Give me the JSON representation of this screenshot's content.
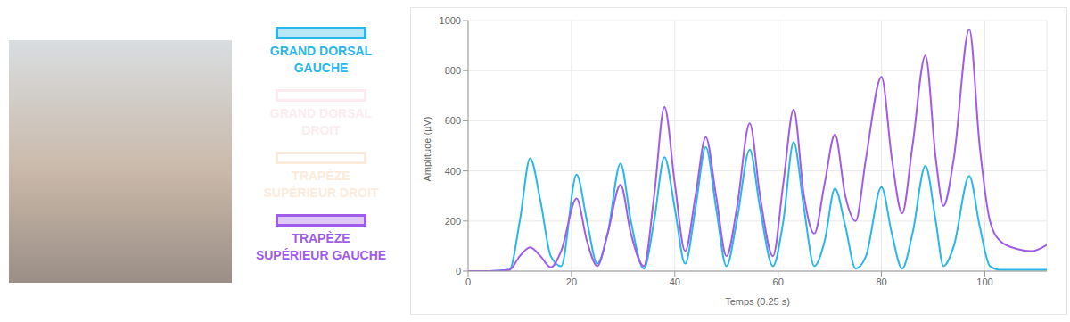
{
  "chart_data": {
    "type": "line",
    "x_label": "Temps (0.25 s)",
    "y_label": "Amplitude (µV)",
    "legend": "left",
    "grid": true,
    "xlim": [
      0,
      112
    ],
    "xticks": [
      0,
      20,
      40,
      60,
      80,
      100
    ],
    "ylim": [
      0,
      1000
    ],
    "yticks": [
      0,
      200,
      400,
      600,
      800,
      1000
    ],
    "x": [
      0,
      4,
      8,
      10,
      12,
      14,
      16,
      18,
      21,
      23,
      25,
      27,
      29.5,
      31.5,
      34,
      36,
      38,
      40,
      42,
      44,
      46,
      48,
      50,
      52,
      54.5,
      56.5,
      59,
      61,
      63,
      65,
      67,
      69,
      71,
      73,
      75,
      77,
      80,
      82,
      84,
      86,
      88.5,
      90.5,
      92,
      94,
      97,
      99,
      101,
      103,
      106,
      109,
      112
    ],
    "series": [
      {
        "name": "GRAND DORSAL GAUCHE",
        "color": "#29b6e8",
        "values": [
          0,
          0,
          5,
          200,
          450,
          280,
          60,
          20,
          385,
          200,
          30,
          150,
          430,
          200,
          10,
          200,
          455,
          250,
          30,
          250,
          495,
          250,
          20,
          200,
          485,
          250,
          20,
          200,
          515,
          250,
          20,
          120,
          330,
          180,
          10,
          60,
          335,
          150,
          10,
          150,
          420,
          200,
          20,
          100,
          380,
          180,
          20,
          5,
          5,
          5,
          5
        ]
      },
      {
        "name": "GRAND DORSAL DROIT",
        "color": "#f8c8d4",
        "values": [
          null,
          null,
          null,
          null,
          null,
          null,
          null,
          null,
          null,
          null,
          null,
          null,
          null,
          null,
          null,
          null,
          null,
          null,
          null,
          null,
          null,
          null,
          null,
          null,
          null,
          null,
          null,
          null,
          null,
          null,
          null,
          null,
          null,
          null,
          null,
          null,
          null,
          null,
          null,
          null,
          null,
          null,
          null,
          null,
          null,
          null,
          null,
          null,
          null,
          null,
          null
        ]
      },
      {
        "name": "TRAPÈZE SUPÉRIEUR DROIT",
        "color": "#f5c89a",
        "values": [
          null,
          null,
          null,
          null,
          null,
          null,
          null,
          null,
          null,
          null,
          null,
          null,
          null,
          null,
          null,
          null,
          null,
          null,
          null,
          null,
          null,
          null,
          null,
          null,
          null,
          null,
          null,
          null,
          null,
          null,
          null,
          null,
          null,
          null,
          null,
          null,
          null,
          null,
          null,
          null,
          null,
          null,
          null,
          null,
          null,
          null,
          null,
          null,
          null,
          null,
          null
        ]
      },
      {
        "name": "TRAPÈZE SUPÉRIEUR GAUCHE",
        "color": "#a05ce8",
        "values": [
          0,
          0,
          5,
          60,
          95,
          60,
          15,
          80,
          290,
          120,
          20,
          150,
          345,
          150,
          20,
          300,
          655,
          350,
          80,
          300,
          535,
          300,
          60,
          250,
          590,
          300,
          60,
          350,
          645,
          300,
          150,
          350,
          545,
          300,
          200,
          450,
          775,
          450,
          230,
          500,
          860,
          450,
          260,
          450,
          965,
          500,
          200,
          120,
          90,
          80,
          105
        ]
      }
    ]
  }
}
